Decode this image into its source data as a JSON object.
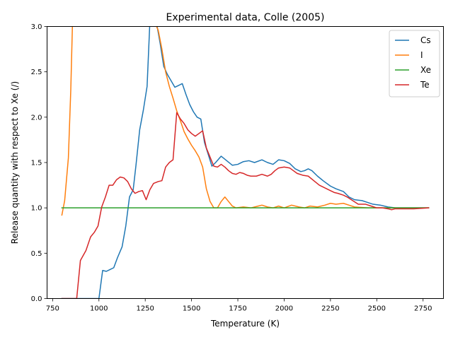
{
  "chart_data": {
    "type": "line",
    "title": "Experimental data, Colle (2005)",
    "xlabel": "Temperature (K)",
    "ylabel": "Release quantity with respect to Xe (/)",
    "xlim": [
      720,
      2860
    ],
    "ylim": [
      0,
      3.0
    ],
    "xticks": [
      750,
      1000,
      1250,
      1500,
      1750,
      2000,
      2250,
      2500,
      2750
    ],
    "xtick_labels": [
      "750",
      "1000",
      "1250",
      "1500",
      "1750",
      "2000",
      "2250",
      "2500",
      "2750"
    ],
    "yticks": [
      0.0,
      0.5,
      1.0,
      1.5,
      2.0,
      2.5,
      3.0
    ],
    "ytick_labels": [
      "0.0",
      "0.5",
      "1.0",
      "1.5",
      "2.0",
      "2.5",
      "3.0"
    ],
    "grid": false,
    "legend_position": "top-right",
    "series": [
      {
        "name": "Cs",
        "color": "#1f77b4",
        "points": [
          [
            800,
            0
          ],
          [
            1000,
            0
          ],
          [
            1020,
            0.31
          ],
          [
            1040,
            0.3
          ],
          [
            1060,
            0.32
          ],
          [
            1080,
            0.34
          ],
          [
            1100,
            0.45
          ],
          [
            1125,
            0.57
          ],
          [
            1145,
            0.8
          ],
          [
            1165,
            1.12
          ],
          [
            1185,
            1.2
          ],
          [
            1200,
            1.47
          ],
          [
            1220,
            1.86
          ],
          [
            1240,
            2.08
          ],
          [
            1260,
            2.34
          ],
          [
            1275,
            3.05
          ],
          [
            1290,
            3.1
          ],
          [
            1310,
            3.05
          ],
          [
            1330,
            2.82
          ],
          [
            1350,
            2.56
          ],
          [
            1370,
            2.47
          ],
          [
            1390,
            2.4
          ],
          [
            1410,
            2.33
          ],
          [
            1430,
            2.35
          ],
          [
            1450,
            2.37
          ],
          [
            1470,
            2.25
          ],
          [
            1490,
            2.14
          ],
          [
            1510,
            2.06
          ],
          [
            1530,
            2.0
          ],
          [
            1550,
            1.98
          ],
          [
            1570,
            1.72
          ],
          [
            1590,
            1.59
          ],
          [
            1610,
            1.46
          ],
          [
            1630,
            1.5
          ],
          [
            1660,
            1.57
          ],
          [
            1690,
            1.52
          ],
          [
            1720,
            1.47
          ],
          [
            1750,
            1.48
          ],
          [
            1780,
            1.51
          ],
          [
            1810,
            1.52
          ],
          [
            1840,
            1.5
          ],
          [
            1880,
            1.53
          ],
          [
            1910,
            1.5
          ],
          [
            1940,
            1.48
          ],
          [
            1970,
            1.53
          ],
          [
            2000,
            1.52
          ],
          [
            2030,
            1.49
          ],
          [
            2060,
            1.43
          ],
          [
            2090,
            1.4
          ],
          [
            2110,
            1.41
          ],
          [
            2130,
            1.43
          ],
          [
            2150,
            1.41
          ],
          [
            2180,
            1.35
          ],
          [
            2210,
            1.3
          ],
          [
            2250,
            1.24
          ],
          [
            2280,
            1.21
          ],
          [
            2320,
            1.18
          ],
          [
            2350,
            1.12
          ],
          [
            2380,
            1.09
          ],
          [
            2420,
            1.08
          ],
          [
            2450,
            1.06
          ],
          [
            2480,
            1.04
          ],
          [
            2520,
            1.03
          ],
          [
            2560,
            1.01
          ],
          [
            2600,
            1.0
          ],
          [
            2700,
            1.0
          ],
          [
            2780,
            1.0
          ]
        ]
      },
      {
        "name": "I",
        "color": "#ff7f0e",
        "points": [
          [
            800,
            0.92
          ],
          [
            815,
            1.08
          ],
          [
            835,
            1.55
          ],
          [
            848,
            2.3
          ],
          [
            858,
            3.1
          ],
          [
            1280,
            3.1
          ],
          [
            1300,
            3.05
          ],
          [
            1320,
            2.96
          ],
          [
            1340,
            2.75
          ],
          [
            1360,
            2.5
          ],
          [
            1380,
            2.34
          ],
          [
            1400,
            2.21
          ],
          [
            1420,
            2.07
          ],
          [
            1440,
            1.96
          ],
          [
            1460,
            1.84
          ],
          [
            1480,
            1.76
          ],
          [
            1500,
            1.69
          ],
          [
            1520,
            1.63
          ],
          [
            1540,
            1.56
          ],
          [
            1560,
            1.45
          ],
          [
            1580,
            1.21
          ],
          [
            1600,
            1.07
          ],
          [
            1620,
            1.0
          ],
          [
            1640,
            1.0
          ],
          [
            1660,
            1.07
          ],
          [
            1680,
            1.12
          ],
          [
            1700,
            1.07
          ],
          [
            1720,
            1.02
          ],
          [
            1740,
            1.0
          ],
          [
            1780,
            1.01
          ],
          [
            1820,
            1.0
          ],
          [
            1860,
            1.02
          ],
          [
            1880,
            1.03
          ],
          [
            1910,
            1.01
          ],
          [
            1940,
            1.0
          ],
          [
            1970,
            1.02
          ],
          [
            2000,
            1.0
          ],
          [
            2040,
            1.03
          ],
          [
            2080,
            1.01
          ],
          [
            2110,
            1.0
          ],
          [
            2140,
            1.02
          ],
          [
            2180,
            1.01
          ],
          [
            2220,
            1.03
          ],
          [
            2250,
            1.05
          ],
          [
            2280,
            1.04
          ],
          [
            2320,
            1.05
          ],
          [
            2350,
            1.03
          ],
          [
            2380,
            1.01
          ],
          [
            2450,
            1.0
          ],
          [
            2500,
            1.0
          ],
          [
            2600,
            1.0
          ],
          [
            2780,
            1.0
          ]
        ]
      },
      {
        "name": "Xe",
        "color": "#2ca02c",
        "points": [
          [
            800,
            1.0
          ],
          [
            2780,
            1.0
          ]
        ]
      },
      {
        "name": "Te",
        "color": "#d62728",
        "points": [
          [
            800,
            0
          ],
          [
            880,
            0
          ],
          [
            900,
            0.42
          ],
          [
            930,
            0.53
          ],
          [
            955,
            0.68
          ],
          [
            975,
            0.73
          ],
          [
            995,
            0.8
          ],
          [
            1015,
            1.01
          ],
          [
            1035,
            1.12
          ],
          [
            1055,
            1.25
          ],
          [
            1075,
            1.25
          ],
          [
            1095,
            1.31
          ],
          [
            1115,
            1.34
          ],
          [
            1135,
            1.33
          ],
          [
            1155,
            1.29
          ],
          [
            1175,
            1.21
          ],
          [
            1195,
            1.16
          ],
          [
            1215,
            1.18
          ],
          [
            1235,
            1.19
          ],
          [
            1255,
            1.09
          ],
          [
            1275,
            1.2
          ],
          [
            1295,
            1.27
          ],
          [
            1320,
            1.29
          ],
          [
            1340,
            1.3
          ],
          [
            1360,
            1.45
          ],
          [
            1380,
            1.5
          ],
          [
            1400,
            1.53
          ],
          [
            1420,
            2.05
          ],
          [
            1440,
            1.98
          ],
          [
            1460,
            1.93
          ],
          [
            1480,
            1.86
          ],
          [
            1500,
            1.82
          ],
          [
            1520,
            1.79
          ],
          [
            1540,
            1.82
          ],
          [
            1560,
            1.85
          ],
          [
            1580,
            1.66
          ],
          [
            1600,
            1.56
          ],
          [
            1620,
            1.46
          ],
          [
            1640,
            1.45
          ],
          [
            1660,
            1.48
          ],
          [
            1680,
            1.45
          ],
          [
            1700,
            1.41
          ],
          [
            1720,
            1.38
          ],
          [
            1740,
            1.37
          ],
          [
            1760,
            1.39
          ],
          [
            1780,
            1.38
          ],
          [
            1800,
            1.36
          ],
          [
            1820,
            1.35
          ],
          [
            1850,
            1.35
          ],
          [
            1880,
            1.37
          ],
          [
            1910,
            1.35
          ],
          [
            1930,
            1.37
          ],
          [
            1950,
            1.41
          ],
          [
            1970,
            1.44
          ],
          [
            2000,
            1.45
          ],
          [
            2030,
            1.44
          ],
          [
            2050,
            1.41
          ],
          [
            2070,
            1.38
          ],
          [
            2100,
            1.36
          ],
          [
            2130,
            1.35
          ],
          [
            2160,
            1.3
          ],
          [
            2190,
            1.25
          ],
          [
            2220,
            1.22
          ],
          [
            2250,
            1.19
          ],
          [
            2270,
            1.17
          ],
          [
            2290,
            1.16
          ],
          [
            2320,
            1.14
          ],
          [
            2340,
            1.12
          ],
          [
            2370,
            1.08
          ],
          [
            2400,
            1.04
          ],
          [
            2440,
            1.04
          ],
          [
            2470,
            1.02
          ],
          [
            2500,
            1.0
          ],
          [
            2530,
            1.0
          ],
          [
            2560,
            0.99
          ],
          [
            2580,
            0.98
          ],
          [
            2600,
            0.99
          ],
          [
            2700,
            0.99
          ],
          [
            2780,
            1.0
          ]
        ]
      }
    ]
  }
}
